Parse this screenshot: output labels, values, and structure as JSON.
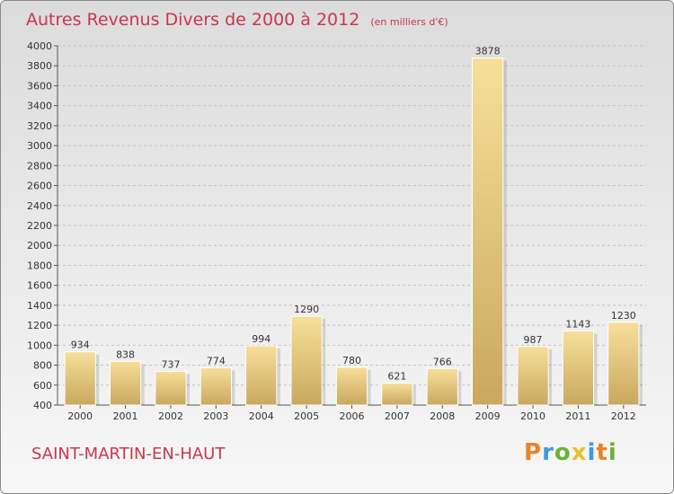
{
  "chart_data": {
    "type": "bar",
    "title": "Autres Revenus Divers de 2000 à 2012",
    "subtitle": "(en milliers d'€)",
    "categories": [
      "2000",
      "2001",
      "2002",
      "2003",
      "2004",
      "2005",
      "2006",
      "2007",
      "2008",
      "2009",
      "2010",
      "2011",
      "2012"
    ],
    "values": [
      934,
      838,
      737,
      774,
      994,
      1290,
      780,
      621,
      766,
      3878,
      987,
      1143,
      1230
    ],
    "ylim": [
      400,
      4000
    ],
    "yticks": [
      400,
      600,
      800,
      1000,
      1200,
      1400,
      1600,
      1800,
      2000,
      2200,
      2400,
      2600,
      2800,
      3000,
      3200,
      3400,
      3600,
      3800,
      4000
    ],
    "grid": true,
    "bar_color": "#e9c97a",
    "title_color": "#c8384a"
  },
  "footer": {
    "place": "SAINT-MARTIN-EN-HAUT",
    "logo_letters": [
      "P",
      "r",
      "o",
      "x",
      "i",
      "t",
      "i"
    ],
    "logo_colors": [
      "#e8832a",
      "#3a9ad9",
      "#6bb23a",
      "#e8c22a",
      "#3a9ad9",
      "#e8832a",
      "#6bb23a"
    ]
  }
}
